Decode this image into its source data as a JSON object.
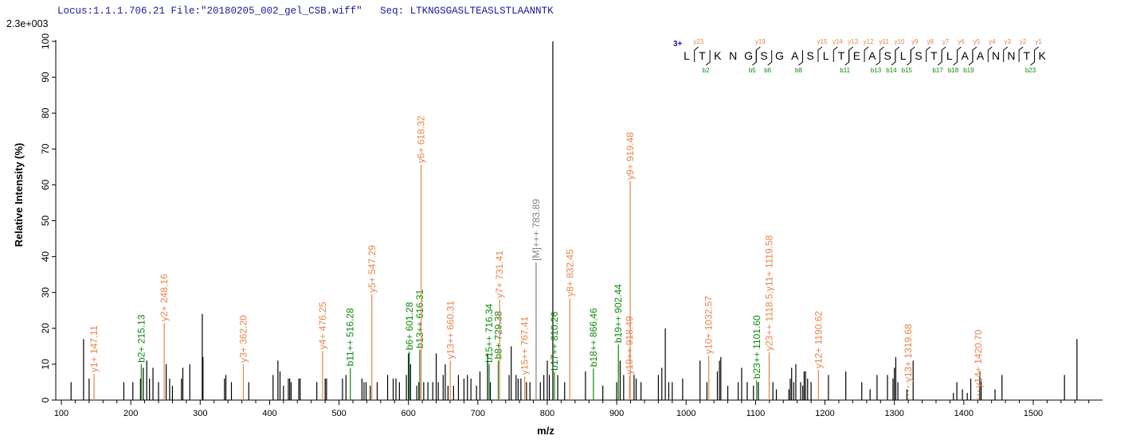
{
  "header": {
    "locus": "Locus:1.1.1.706.21",
    "file": "File:\"20180205_002_gel_CSB.wiff\"",
    "seq_label": "Seq:",
    "seq": "LTKNGSGASLTEASLSTLAANNTK"
  },
  "chart_data": {
    "type": "bar",
    "title": "",
    "scale_label": "2.3e+003",
    "xlabel": "m/z",
    "ylabel": "Relative   Intensity (%)",
    "xlim": [
      90,
      1590
    ],
    "ylim": [
      0,
      100
    ],
    "xticks": [
      100,
      200,
      300,
      400,
      500,
      600,
      700,
      800,
      900,
      1000,
      1100,
      1200,
      1300,
      1400,
      1500
    ],
    "yticks": [
      0,
      10,
      20,
      30,
      40,
      50,
      60,
      70,
      80,
      90,
      100
    ],
    "colors": {
      "y": "#e8834a",
      "b": "#0a8a0a",
      "M": "#808080",
      "unassigned": "#000000",
      "charge": "#1a1a9c"
    },
    "labeled_peaks": [
      {
        "mz": 147.11,
        "i": 7.3,
        "type": "y",
        "label": "y1+ 147.11"
      },
      {
        "mz": 215.13,
        "i": 10,
        "type": "b",
        "label": "b2+ 215.13"
      },
      {
        "mz": 248.16,
        "i": 21.5,
        "type": "y",
        "label": "y2+ 248.16"
      },
      {
        "mz": 362.2,
        "i": 10,
        "type": "y",
        "label": "y3+ 362.20"
      },
      {
        "mz": 476.25,
        "i": 13.7,
        "type": "y",
        "label": "y4+ 476.25"
      },
      {
        "mz": 516.28,
        "i": 9,
        "type": "b",
        "label": "b11++ 516.28"
      },
      {
        "mz": 547.29,
        "i": 29.5,
        "type": "y",
        "label": "y5+ 547.29"
      },
      {
        "mz": 601.28,
        "i": 13.5,
        "type": "b",
        "label": "b6+ 601.28"
      },
      {
        "mz": 616.31,
        "i": 14,
        "type": "b",
        "label": "b13++ 616.31"
      },
      {
        "mz": 618.32,
        "i": 65.6,
        "type": "y",
        "label": "y6+ 618.32"
      },
      {
        "mz": 660.31,
        "i": 11,
        "type": "y",
        "label": "y13++ 660.31"
      },
      {
        "mz": 716.34,
        "i": 10,
        "type": "b",
        "label": "b15++ 716.34"
      },
      {
        "mz": 729.38,
        "i": 11,
        "type": "b",
        "label": "b8+ 729.38"
      },
      {
        "mz": 731.41,
        "i": 28,
        "type": "y",
        "label": "y7+ 731.41"
      },
      {
        "mz": 767.41,
        "i": 6.6,
        "type": "y",
        "label": "y15++ 767.41"
      },
      {
        "mz": 783.89,
        "i": 38.4,
        "type": "M",
        "label": "[M]+++ 783.89"
      },
      {
        "mz": 810.26,
        "i": 7.8,
        "type": "b",
        "label": "b17++ 810.26"
      },
      {
        "mz": 832.45,
        "i": 28.4,
        "type": "y",
        "label": "y8+ 832.45"
      },
      {
        "mz": 866.46,
        "i": 8.8,
        "type": "b",
        "label": "b18++ 866.46"
      },
      {
        "mz": 902.44,
        "i": 15.5,
        "type": "b",
        "label": "b19++ 902.44"
      },
      {
        "mz": 918.49,
        "i": 6.7,
        "type": "y",
        "label": "y19++ 918.49"
      },
      {
        "mz": 919.48,
        "i": 61,
        "type": "y",
        "label": "y9+ 919.48"
      },
      {
        "mz": 1032.57,
        "i": 12.4,
        "type": "y",
        "label": "y10+ 1032.57"
      },
      {
        "mz": 1101.6,
        "i": 5.5,
        "type": "b",
        "label": "b23++ 1101.60"
      },
      {
        "mz": 1119.58,
        "i": 13.3,
        "type": "y",
        "label": "y23++ 1118.5,y11+ 1119.58"
      },
      {
        "mz": 1190.62,
        "i": 8.4,
        "type": "y",
        "label": "y12+ 1190.62"
      },
      {
        "mz": 1319.68,
        "i": 4.6,
        "type": "y",
        "label": "y13+ 1319.68",
        "dashed": true
      },
      {
        "mz": 1420.7,
        "i": 3,
        "type": "y",
        "label": "y14+ 1420.70",
        "dashed": true
      }
    ],
    "unassigned_peaks": [
      [
        114,
        5
      ],
      [
        132,
        17
      ],
      [
        140,
        6
      ],
      [
        190,
        5
      ],
      [
        203,
        5
      ],
      [
        214,
        6
      ],
      [
        218,
        9
      ],
      [
        223,
        11
      ],
      [
        227,
        6
      ],
      [
        232,
        9
      ],
      [
        240,
        5
      ],
      [
        251,
        10
      ],
      [
        256,
        6
      ],
      [
        260,
        4
      ],
      [
        273,
        6
      ],
      [
        275,
        9
      ],
      [
        285,
        10
      ],
      [
        303,
        24
      ],
      [
        304,
        12
      ],
      [
        335,
        6
      ],
      [
        337,
        7
      ],
      [
        345,
        5
      ],
      [
        370,
        5
      ],
      [
        405,
        7
      ],
      [
        412,
        11
      ],
      [
        415,
        8
      ],
      [
        420,
        4
      ],
      [
        427,
        6
      ],
      [
        429,
        6
      ],
      [
        431,
        5
      ],
      [
        442,
        6
      ],
      [
        444,
        6
      ],
      [
        468,
        5
      ],
      [
        480,
        6
      ],
      [
        482,
        6
      ],
      [
        505,
        6
      ],
      [
        510,
        7
      ],
      [
        533,
        6
      ],
      [
        536,
        5
      ],
      [
        539,
        5
      ],
      [
        545,
        4
      ],
      [
        555,
        5
      ],
      [
        570,
        7
      ],
      [
        578,
        6
      ],
      [
        582,
        6
      ],
      [
        587,
        5
      ],
      [
        597,
        7
      ],
      [
        600,
        13
      ],
      [
        603,
        10
      ],
      [
        612,
        4
      ],
      [
        615,
        5
      ],
      [
        622,
        5
      ],
      [
        628,
        5
      ],
      [
        635,
        5
      ],
      [
        640,
        13
      ],
      [
        643,
        5
      ],
      [
        650,
        7
      ],
      [
        653,
        10
      ],
      [
        657,
        4
      ],
      [
        665,
        4
      ],
      [
        672,
        7
      ],
      [
        680,
        6
      ],
      [
        685,
        7
      ],
      [
        690,
        6
      ],
      [
        698,
        4
      ],
      [
        703,
        8
      ],
      [
        714,
        13
      ],
      [
        718,
        5
      ],
      [
        745,
        7
      ],
      [
        748,
        15
      ],
      [
        755,
        7
      ],
      [
        758,
        6
      ],
      [
        762,
        6
      ],
      [
        770,
        5
      ],
      [
        775,
        5
      ],
      [
        790,
        5
      ],
      [
        795,
        7
      ],
      [
        800,
        11
      ],
      [
        803,
        7
      ],
      [
        808,
        100
      ],
      [
        815,
        7
      ],
      [
        825,
        5
      ],
      [
        855,
        8
      ],
      [
        880,
        4
      ],
      [
        900,
        5
      ],
      [
        905,
        11
      ],
      [
        910,
        7
      ],
      [
        925,
        7
      ],
      [
        928,
        6
      ],
      [
        935,
        5
      ],
      [
        960,
        7
      ],
      [
        965,
        9
      ],
      [
        970,
        20
      ],
      [
        975,
        5
      ],
      [
        980,
        5
      ],
      [
        995,
        6
      ],
      [
        1020,
        11
      ],
      [
        1030,
        5
      ],
      [
        1045,
        8
      ],
      [
        1048,
        11
      ],
      [
        1050,
        12
      ],
      [
        1060,
        4
      ],
      [
        1075,
        5
      ],
      [
        1080,
        9
      ],
      [
        1088,
        5
      ],
      [
        1097,
        4
      ],
      [
        1104,
        5
      ],
      [
        1125,
        5
      ],
      [
        1130,
        3
      ],
      [
        1148,
        3
      ],
      [
        1150,
        6
      ],
      [
        1152,
        9
      ],
      [
        1155,
        5
      ],
      [
        1158,
        10
      ],
      [
        1165,
        5
      ],
      [
        1168,
        4
      ],
      [
        1170,
        8
      ],
      [
        1172,
        8
      ],
      [
        1175,
        6
      ],
      [
        1180,
        5
      ],
      [
        1205,
        7
      ],
      [
        1230,
        8
      ],
      [
        1253,
        5
      ],
      [
        1265,
        3
      ],
      [
        1275,
        7
      ],
      [
        1290,
        7
      ],
      [
        1298,
        6
      ],
      [
        1300,
        9
      ],
      [
        1302,
        12
      ],
      [
        1305,
        5
      ],
      [
        1318,
        3
      ],
      [
        1327,
        11
      ],
      [
        1385,
        2
      ],
      [
        1390,
        5
      ],
      [
        1398,
        3
      ],
      [
        1405,
        2
      ],
      [
        1410,
        6
      ],
      [
        1423,
        8
      ],
      [
        1425,
        6
      ],
      [
        1445,
        3
      ],
      [
        1455,
        7
      ],
      [
        1545,
        7
      ],
      [
        1563,
        17
      ]
    ]
  },
  "sequence_map": {
    "charge": "3+",
    "residues": [
      "L",
      "T",
      "K",
      "N",
      "G",
      "S",
      "G",
      "A",
      "S",
      "L",
      "T",
      "E",
      "A",
      "S",
      "L",
      "S",
      "T",
      "L",
      "A",
      "A",
      "N",
      "N",
      "T",
      "K"
    ],
    "y_ions": [
      {
        "before": 1,
        "label": "y23"
      },
      {
        "before": 5,
        "label": "y19"
      },
      {
        "before": 9,
        "label": "y15"
      },
      {
        "before": 10,
        "label": "y14"
      },
      {
        "before": 11,
        "label": "y13"
      },
      {
        "before": 12,
        "label": "y12"
      },
      {
        "before": 13,
        "label": "y11"
      },
      {
        "before": 14,
        "label": "y10"
      },
      {
        "before": 15,
        "label": "y9"
      },
      {
        "before": 16,
        "label": "y8"
      },
      {
        "before": 17,
        "label": "y7"
      },
      {
        "before": 18,
        "label": "y6"
      },
      {
        "before": 19,
        "label": "y5"
      },
      {
        "before": 20,
        "label": "y4"
      },
      {
        "before": 21,
        "label": "y3"
      },
      {
        "before": 22,
        "label": "y2"
      },
      {
        "before": 23,
        "label": "y1"
      }
    ],
    "b_ions": [
      {
        "after": 1,
        "label": "b2"
      },
      {
        "after": 4,
        "label": "b5"
      },
      {
        "after": 5,
        "label": "b6"
      },
      {
        "after": 7,
        "label": "b8"
      },
      {
        "after": 10,
        "label": "b11"
      },
      {
        "after": 12,
        "label": "b13"
      },
      {
        "after": 13,
        "label": "b14"
      },
      {
        "after": 14,
        "label": "b15"
      },
      {
        "after": 16,
        "label": "b17"
      },
      {
        "after": 17,
        "label": "b18"
      },
      {
        "after": 18,
        "label": "b19"
      },
      {
        "after": 22,
        "label": "b23"
      }
    ]
  }
}
